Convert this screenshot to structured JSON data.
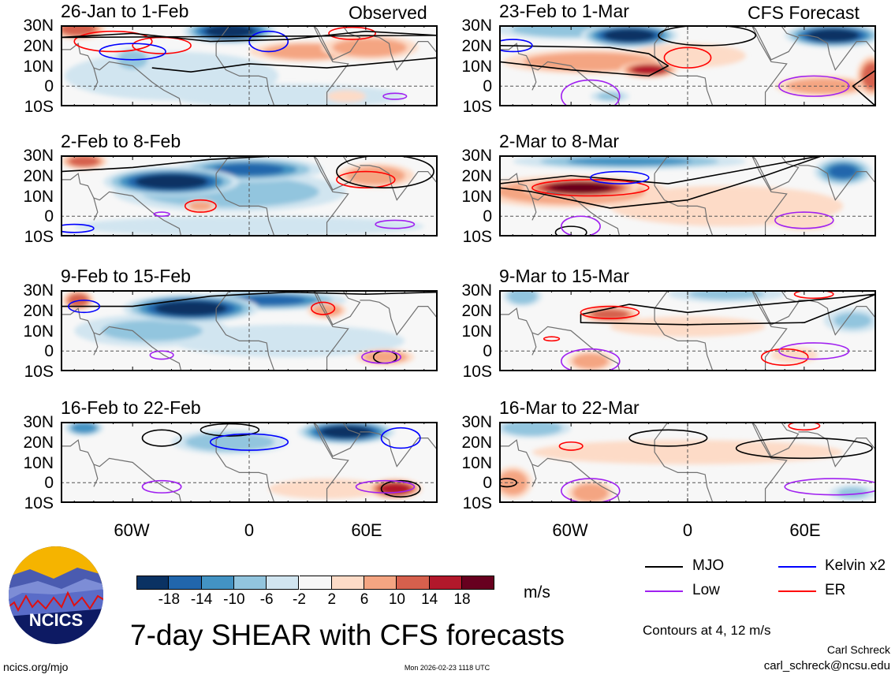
{
  "title": "7-day SHEAR with CFS forecasts",
  "units": "m/s",
  "contour_note": "Contours at 4, 12 m/s",
  "author": "Carl Schreck",
  "email": "carl_schreck@ncsu.edu",
  "site": "ncics.org/mjo",
  "timestamp": "Mon 2026-02-23 1118 UTC",
  "logo_text": "NCICS",
  "lat_labels": [
    "30N",
    "20N",
    "10N",
    "0",
    "10S"
  ],
  "lon_labels": [
    "60W",
    "0",
    "60E"
  ],
  "colorbar": {
    "ticks": [
      "-18",
      "-14",
      "-10",
      "-6",
      "-2",
      "2",
      "6",
      "10",
      "14",
      "18"
    ],
    "colors": [
      "#0a3263",
      "#2166ac",
      "#4393c3",
      "#92c5de",
      "#d1e5f0",
      "#f7f7f7",
      "#fddbc7",
      "#f4a582",
      "#d6604d",
      "#b2182b",
      "#67001f"
    ]
  },
  "legend": [
    {
      "label": "MJO",
      "color": "#000000"
    },
    {
      "label": "Kelvin x2",
      "color": "#0000ff"
    },
    {
      "label": "Low",
      "color": "#a020f0"
    },
    {
      "label": "ER",
      "color": "#ff0000"
    }
  ],
  "chart_data": {
    "type": "map",
    "column_headers": [
      "Observed",
      "CFS Forecast"
    ],
    "lon_range": [
      -97,
      97
    ],
    "lat_range": [
      -10,
      30
    ],
    "panels": [
      {
        "title": "26-Jan to 1-Feb",
        "column": "Observed",
        "shading": [
          [
            -40,
            5,
            55,
            12,
            -4
          ],
          [
            20,
            -5,
            60,
            6,
            -3
          ],
          [
            -60,
            13,
            10,
            6,
            -8
          ],
          [
            30,
            17,
            30,
            5,
            7
          ],
          [
            62,
            19,
            25,
            6,
            10
          ],
          [
            -88,
            28,
            14,
            5,
            12
          ],
          [
            -10,
            27,
            24,
            6,
            -20
          ],
          [
            50,
            -5,
            10,
            3,
            4
          ]
        ],
        "contours": [
          {
            "type": "ER",
            "c": [
              -70,
              22,
              20,
              5
            ]
          },
          {
            "type": "ER",
            "c": [
              -45,
              20,
              15,
              4
            ]
          },
          {
            "type": "ER",
            "c": [
              53,
              26,
              12,
              3
            ]
          },
          {
            "type": "Kelvin x2",
            "c": [
              -60,
              17,
              17,
              4
            ]
          },
          {
            "type": "Kelvin x2",
            "c": [
              10,
              22,
              10,
              5
            ]
          },
          {
            "type": "MJO",
            "p": [
              [
                -97,
                24
              ],
              [
                -60,
                26
              ],
              [
                -20,
                22
              ],
              [
                20,
                23
              ],
              [
                60,
                27
              ],
              [
                97,
                25
              ]
            ]
          },
          {
            "type": "MJO",
            "p": [
              [
                -50,
                9
              ],
              [
                -30,
                7
              ],
              [
                0,
                11
              ],
              [
                40,
                9
              ],
              [
                97,
                14
              ]
            ],
            "open": true
          },
          {
            "type": "Low",
            "c": [
              75,
              -5,
              6,
              1.5
            ]
          }
        ]
      },
      {
        "title": "2-Feb to 8-Feb",
        "column": "Observed",
        "shading": [
          [
            0,
            -5,
            90,
            5,
            -3
          ],
          [
            -10,
            12,
            60,
            10,
            -8
          ],
          [
            0,
            23,
            38,
            6,
            -14
          ],
          [
            -40,
            17,
            35,
            7,
            -20
          ],
          [
            -85,
            27,
            12,
            4,
            12
          ],
          [
            65,
            20,
            20,
            6,
            10
          ],
          [
            -25,
            5,
            8,
            3,
            8
          ]
        ],
        "contours": [
          {
            "type": "ER",
            "c": [
              -25,
              5,
              8,
              3
            ]
          },
          {
            "type": "ER",
            "c": [
              60,
              18,
              15,
              4
            ]
          },
          {
            "type": "MJO",
            "p": [
              [
                -97,
                22
              ],
              [
                -60,
                24
              ],
              [
                -20,
                28
              ],
              [
                20,
                30
              ]
            ],
            "open": true
          },
          {
            "type": "MJO",
            "c": [
              70,
              22,
              25,
              8
            ]
          },
          {
            "type": "Kelvin x2",
            "c": [
              -90,
              -6,
              10,
              2
            ]
          },
          {
            "type": "Low",
            "c": [
              -45,
              1,
              4,
              1
            ]
          },
          {
            "type": "Low",
            "c": [
              75,
              -4,
              10,
              2
            ]
          }
        ]
      },
      {
        "title": "9-Feb to 15-Feb",
        "column": "Observed",
        "shading": [
          [
            20,
            5,
            60,
            8,
            -3
          ],
          [
            -50,
            10,
            40,
            8,
            -6
          ],
          [
            10,
            25,
            40,
            5,
            -14
          ],
          [
            -30,
            21,
            35,
            7,
            -20
          ],
          [
            -88,
            25,
            8,
            5,
            12
          ],
          [
            40,
            20,
            10,
            4,
            8
          ],
          [
            70,
            -3,
            15,
            4,
            8
          ]
        ],
        "contours": [
          {
            "type": "MJO",
            "p": [
              [
                -97,
                22
              ],
              [
                -60,
                22
              ],
              [
                -20,
                27
              ],
              [
                20,
                29
              ],
              [
                60,
                28
              ],
              [
                97,
                29
              ]
            ],
            "open": true
          },
          {
            "type": "MJO",
            "c": [
              70,
              -3,
              6,
              3
            ]
          },
          {
            "type": "ER",
            "c": [
              38,
              21,
              6,
              3
            ]
          },
          {
            "type": "Kelvin x2",
            "c": [
              -85,
              22,
              8,
              3
            ]
          },
          {
            "type": "Low",
            "c": [
              -45,
              -2,
              6,
              2
            ]
          },
          {
            "type": "Low",
            "c": [
              68,
              -3,
              10,
              3
            ]
          }
        ]
      },
      {
        "title": "16-Feb to 22-Feb",
        "column": "Observed",
        "shading": [
          [
            -10,
            20,
            30,
            6,
            -8
          ],
          [
            40,
            -3,
            30,
            5,
            4
          ],
          [
            -85,
            27,
            10,
            4,
            -12
          ],
          [
            50,
            25,
            25,
            6,
            -20
          ],
          [
            75,
            -3,
            14,
            5,
            16
          ]
        ],
        "contours": [
          {
            "type": "MJO",
            "c": [
              -45,
              22,
              10,
              4
            ]
          },
          {
            "type": "MJO",
            "c": [
              -10,
              26,
              15,
              3
            ]
          },
          {
            "type": "MJO",
            "c": [
              78,
              -3,
              10,
              4
            ]
          },
          {
            "type": "Kelvin x2",
            "c": [
              0,
              20,
              20,
              4
            ]
          },
          {
            "type": "Kelvin x2",
            "c": [
              78,
              22,
              10,
              5
            ]
          },
          {
            "type": "Low",
            "c": [
              -45,
              -2,
              10,
              3
            ]
          },
          {
            "type": "Low",
            "c": [
              70,
              -2,
              15,
              3
            ]
          }
        ]
      },
      {
        "title": "23-Feb to 1-Mar",
        "column": "CFS Forecast",
        "shading": [
          [
            -60,
            28,
            40,
            5,
            -8
          ],
          [
            0,
            15,
            30,
            6,
            6
          ],
          [
            -40,
            -5,
            10,
            3,
            -6
          ],
          [
            -50,
            12,
            45,
            6,
            10
          ],
          [
            70,
            0,
            25,
            5,
            10
          ],
          [
            95,
            5,
            8,
            10,
            14
          ],
          [
            -20,
            8,
            15,
            4,
            16
          ],
          [
            -30,
            25,
            25,
            6,
            -20
          ],
          [
            75,
            25,
            25,
            6,
            -20
          ]
        ],
        "contours": [
          {
            "type": "MJO",
            "p": [
              [
                -97,
                20
              ],
              [
                -40,
                19
              ],
              [
                -20,
                16
              ],
              [
                -10,
                10
              ],
              [
                -20,
                5
              ],
              [
                -60,
                8
              ],
              [
                -97,
                12
              ]
            ]
          },
          {
            "type": "MJO",
            "c": [
              10,
              25,
              25,
              5
            ]
          },
          {
            "type": "MJO",
            "p": [
              [
                97,
                -10
              ],
              [
                85,
                0
              ],
              [
                97,
                8
              ]
            ],
            "open": true
          },
          {
            "type": "ER",
            "c": [
              0,
              14,
              12,
              5
            ]
          },
          {
            "type": "Kelvin x2",
            "c": [
              -90,
              20,
              10,
              3
            ]
          },
          {
            "type": "Low",
            "c": [
              -50,
              -5,
              15,
              8
            ]
          },
          {
            "type": "Low",
            "c": [
              65,
              0,
              18,
              5
            ]
          }
        ]
      },
      {
        "title": "2-Mar to 8-Mar",
        "column": "CFS Forecast",
        "shading": [
          [
            20,
            5,
            60,
            10,
            4
          ],
          [
            -30,
            27,
            60,
            4,
            -10
          ],
          [
            60,
            -3,
            15,
            4,
            6
          ],
          [
            -60,
            12,
            50,
            8,
            10
          ],
          [
            80,
            22,
            15,
            7,
            -14
          ],
          [
            -55,
            14,
            30,
            5,
            20
          ]
        ],
        "contours": [
          {
            "type": "MJO",
            "p": [
              [
                -97,
                16
              ],
              [
                -60,
                20
              ],
              [
                -10,
                16
              ],
              [
                30,
                23
              ],
              [
                70,
                30
              ],
              [
                40,
                20
              ],
              [
                0,
                8
              ],
              [
                -40,
                4
              ],
              [
                -80,
                12
              ],
              [
                -97,
                14
              ]
            ]
          },
          {
            "type": "MJO",
            "c": [
              -60,
              -8,
              8,
              3
            ]
          },
          {
            "type": "ER",
            "c": [
              -50,
              14,
              30,
              4
            ]
          },
          {
            "type": "Kelvin x2",
            "c": [
              -35,
              19,
              15,
              3
            ]
          },
          {
            "type": "Low",
            "c": [
              60,
              -2,
              15,
              4
            ]
          },
          {
            "type": "Low",
            "c": [
              -55,
              -5,
              10,
              5
            ]
          }
        ]
      },
      {
        "title": "9-Mar to 15-Mar",
        "column": "CFS Forecast",
        "shading": [
          [
            0,
            12,
            40,
            5,
            4
          ],
          [
            -85,
            27,
            10,
            5,
            -8
          ],
          [
            20,
            28,
            30,
            4,
            -6
          ],
          [
            85,
            15,
            15,
            6,
            -6
          ],
          [
            55,
            -2,
            12,
            4,
            6
          ],
          [
            -50,
            -5,
            12,
            5,
            10
          ],
          [
            -40,
            18,
            15,
            4,
            12
          ]
        ],
        "contours": [
          {
            "type": "MJO",
            "p": [
              [
                -55,
                18
              ],
              [
                -30,
                23
              ],
              [
                0,
                19
              ],
              [
                30,
                22
              ],
              [
                97,
                28
              ],
              [
                60,
                14
              ],
              [
                0,
                13
              ],
              [
                -55,
                14
              ]
            ]
          },
          {
            "type": "ER",
            "c": [
              -40,
              19,
              15,
              3
            ]
          },
          {
            "type": "ER",
            "c": [
              50,
              -3,
              12,
              4
            ]
          },
          {
            "type": "ER",
            "c": [
              65,
              28,
              10,
              2
            ]
          },
          {
            "type": "ER",
            "c": [
              -70,
              6,
              4,
              1
            ]
          },
          {
            "type": "Low",
            "c": [
              -50,
              -5,
              15,
              6
            ]
          },
          {
            "type": "Low",
            "c": [
              65,
              0,
              18,
              4
            ]
          }
        ]
      },
      {
        "title": "16-Mar to 22-Mar",
        "column": "CFS Forecast",
        "shading": [
          [
            0,
            15,
            80,
            6,
            3
          ],
          [
            -80,
            27,
            20,
            5,
            -8
          ],
          [
            85,
            -5,
            12,
            4,
            -6
          ],
          [
            -90,
            0,
            10,
            8,
            10
          ],
          [
            -50,
            -5,
            12,
            6,
            10
          ]
        ],
        "contours": [
          {
            "type": "MJO",
            "c": [
              -10,
              22,
              20,
              4
            ]
          },
          {
            "type": "MJO",
            "c": [
              60,
              17,
              35,
              5
            ]
          },
          {
            "type": "MJO",
            "c": [
              -93,
              0,
              5,
              2
            ]
          },
          {
            "type": "ER",
            "c": [
              -60,
              18,
              6,
              2
            ]
          },
          {
            "type": "ER",
            "c": [
              60,
              28,
              8,
              2
            ]
          },
          {
            "type": "Low",
            "c": [
              -50,
              -4,
              15,
              6
            ]
          },
          {
            "type": "Low",
            "c": [
              75,
              -2,
              25,
              4
            ]
          }
        ]
      }
    ]
  }
}
